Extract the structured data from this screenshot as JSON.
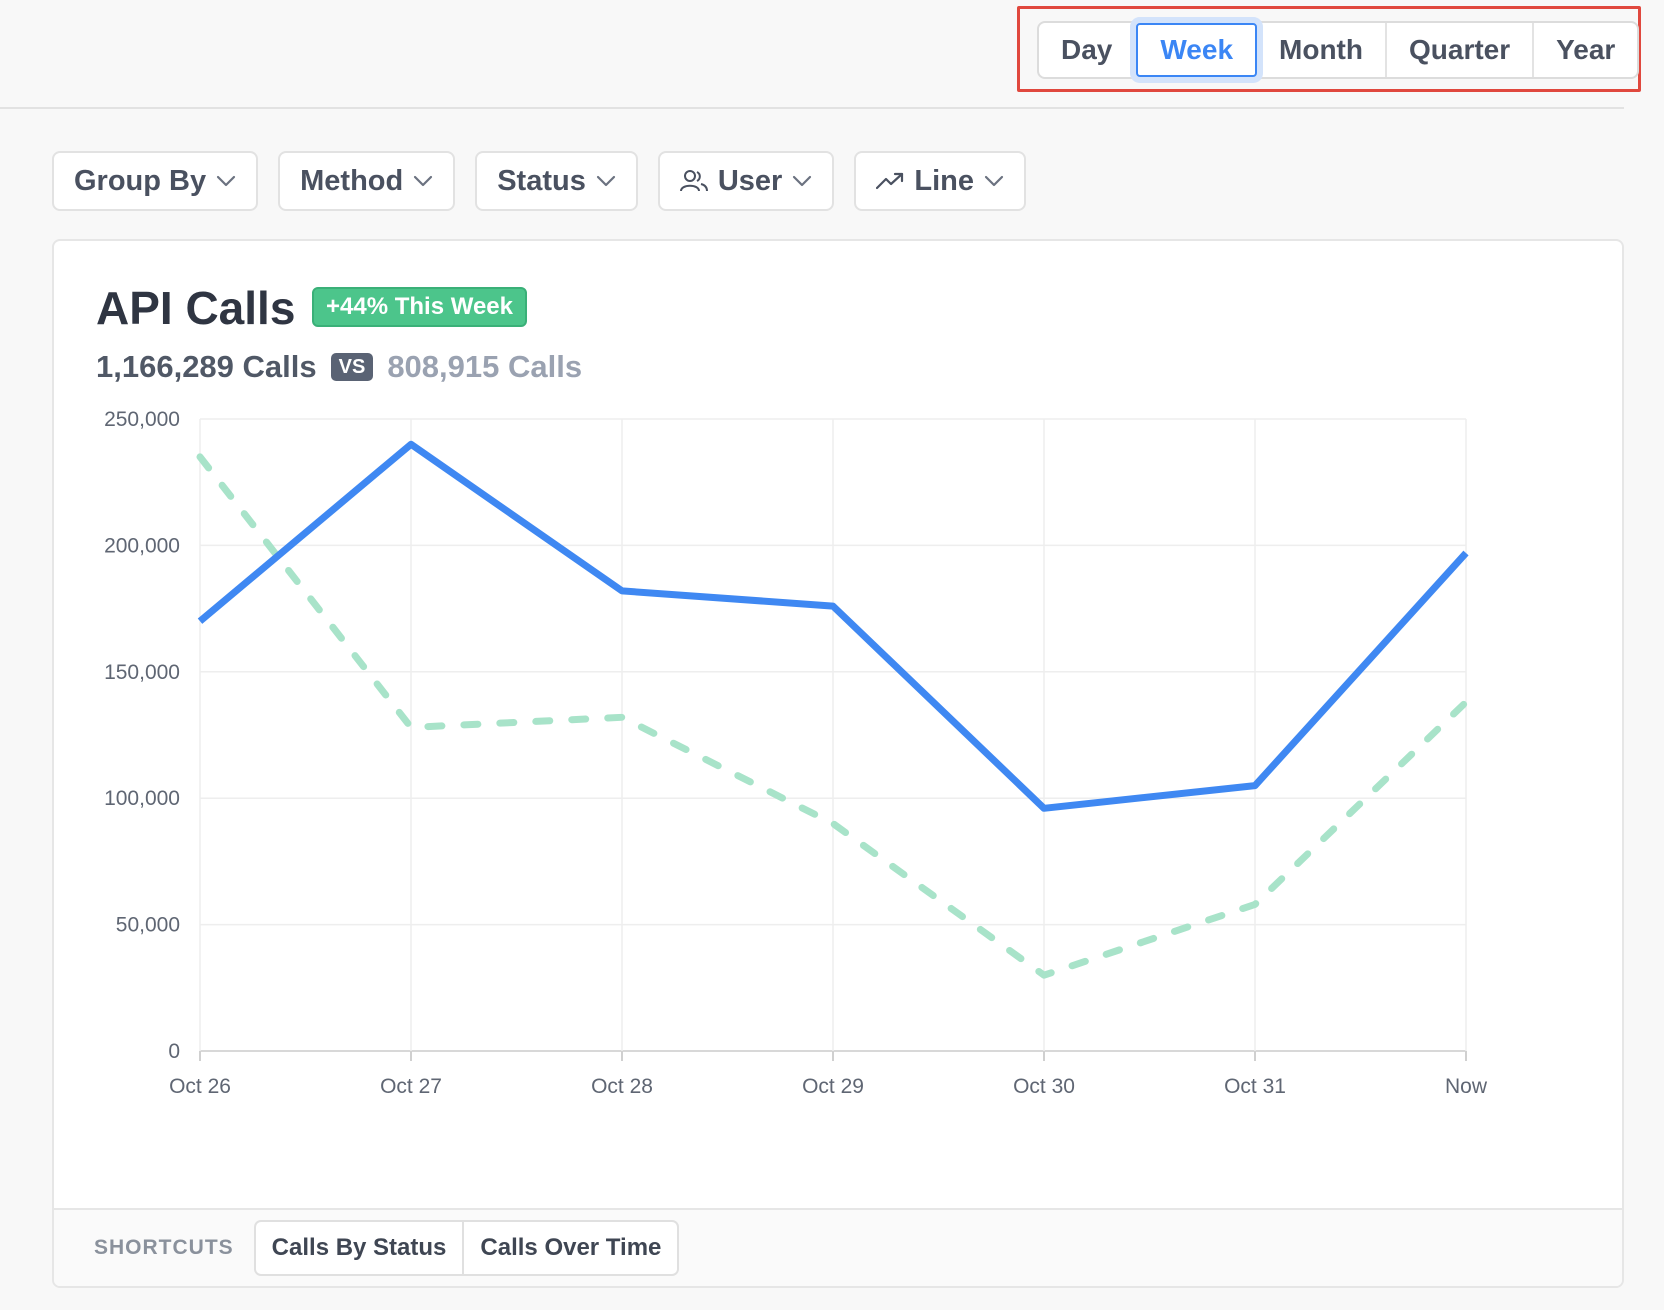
{
  "period_selector": {
    "options": [
      "Day",
      "Week",
      "Month",
      "Quarter",
      "Year"
    ],
    "selected": "Week"
  },
  "filters": {
    "group_by": "Group By",
    "method": "Method",
    "status": "Status",
    "user": "User",
    "line": "Line"
  },
  "card": {
    "title": "API Calls",
    "badge": "+44% This Week",
    "current_calls": "1,166,289 Calls",
    "vs_label": "VS",
    "previous_calls": "808,915 Calls"
  },
  "footer": {
    "label": "SHORTCUTS",
    "shortcuts": [
      "Calls By Status",
      "Calls Over Time"
    ]
  },
  "colors": {
    "current_series": "#3f88f2",
    "previous_series": "#a8e3c9",
    "badge": "#4cc58b",
    "highlight": "#e0483e"
  },
  "chart_data": {
    "type": "line",
    "categories": [
      "Oct 26",
      "Oct 27",
      "Oct 28",
      "Oct 29",
      "Oct 30",
      "Oct 31",
      "Now"
    ],
    "series": [
      {
        "values": [
          170000,
          240000,
          182000,
          176000,
          96000,
          105000,
          197000
        ],
        "style": "solid"
      },
      {
        "values": [
          235000,
          128000,
          132000,
          90000,
          30000,
          58000,
          138000
        ],
        "style": "dashed"
      }
    ],
    "y_ticks": [
      "0",
      "50,000",
      "100,000",
      "150,000",
      "200,000",
      "250,000"
    ],
    "ylim": [
      0,
      250000
    ],
    "grid": true
  }
}
